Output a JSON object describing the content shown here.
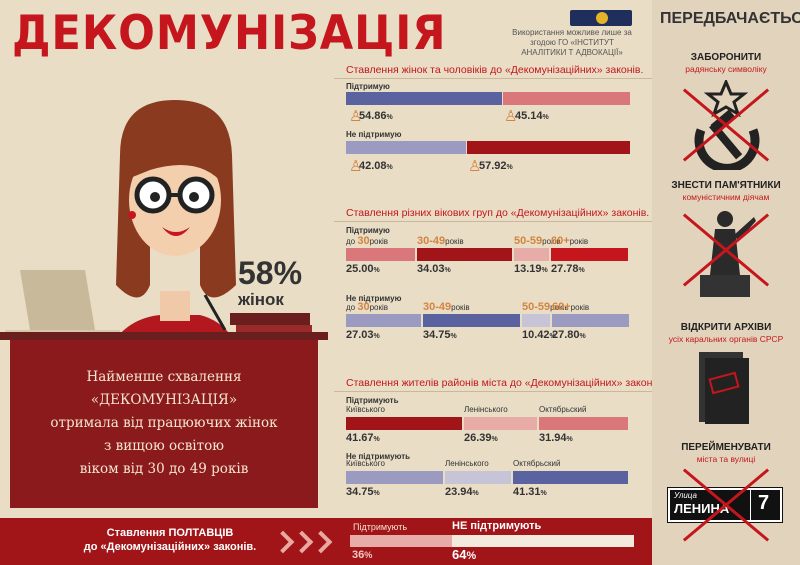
{
  "title": "ДЕКОМУНІЗАЦІЯ",
  "note": "Використання можливе лише за згодою ГО «ІНСТИТУТ АНАЛІТИКИ Т АДВОКАЦІЇ»",
  "colors": {
    "red": "#c4161c",
    "dark_red": "#a11418",
    "light_red": "#d9777a",
    "blue": "#5b62a0",
    "light_blue": "#9b9ac0",
    "pink": "#e8aca8"
  },
  "gender": {
    "title": "Ставлення жінок та чоловіків до «Декомунізаційних» законів.",
    "support_label": "Підтримую",
    "oppose_label": "Не підтримую",
    "support": {
      "male": 54.86,
      "female": 45.14,
      "male_text": "54.86",
      "female_text": "45.14"
    },
    "oppose": {
      "male": 42.08,
      "female": 57.92,
      "male_text": "42.08",
      "female_text": "57.92"
    },
    "pct": "%"
  },
  "age": {
    "title": "Ставлення різних вікових груп до «Декомунізаційних» законів.",
    "support_label": "Підтримую",
    "oppose_label": "Не підтримую",
    "groups": [
      {
        "pre": "до",
        "num": "30",
        "suf": "років"
      },
      {
        "pre": "",
        "num": "30-49",
        "suf": "років"
      },
      {
        "pre": "",
        "num": "50-59",
        "suf": "років"
      },
      {
        "pre": "",
        "num": "60+",
        "suf": "років"
      }
    ],
    "support": [
      25.0,
      34.03,
      13.19,
      27.78
    ],
    "support_text": [
      "25.00",
      "34.03",
      "13.19",
      "27.78"
    ],
    "oppose": [
      27.03,
      34.75,
      10.42,
      27.8
    ],
    "oppose_text": [
      "27.03",
      "34.75",
      "10.42",
      "27.80"
    ]
  },
  "district": {
    "title": "Ставлення жителів районів міста до «Декомунізаційних» законів.",
    "support_label": "Підтримують",
    "oppose_label": "Не підтримують",
    "names": [
      "Київського",
      "Ленінського",
      "Октябрьский"
    ],
    "support": [
      41.67,
      26.39,
      31.94
    ],
    "support_text": [
      "41.67",
      "26.39",
      "31.94"
    ],
    "oppose": [
      34.75,
      23.94,
      41.31
    ],
    "oppose_text": [
      "34.75",
      "23.94",
      "41.31"
    ]
  },
  "women": {
    "percent": "58%",
    "label": "жінок"
  },
  "desk_text": [
    "Найменше схвалення",
    "«ДЕКОМУНІЗАЦІЯ»",
    "отримала від працюючих жінок",
    "з вищою освітою",
    "віком від 30 до 49 років"
  ],
  "poltava": {
    "line1a": "Ставлення ",
    "line1b": "ПОЛТАВЦІВ",
    "line2": "до «Декомунізаційних» законів.",
    "support_label": "Підтримують",
    "oppose_label": "НЕ підтримують",
    "support_value": 36,
    "oppose_value": 64,
    "support_text": "36",
    "oppose_text": "64",
    "pct": "%"
  },
  "right": {
    "title": "ПЕРЕДБАЧАЄТЬСЯ:",
    "items": [
      {
        "head": "ЗАБОРОНИТИ",
        "sub": "радянську символіку",
        "icon": "hammer-sickle-star-icon"
      },
      {
        "head": "ЗНЕСТИ ПАМ'ЯТНИКИ",
        "sub": "комуністичним діячам",
        "icon": "lenin-monument-icon"
      },
      {
        "head": "ВІДКРИТИ АРХІВИ",
        "sub": "усіх каральних органів СРСР",
        "icon": "archive-folder-icon"
      },
      {
        "head": "ПЕРЕЙМЕНУВАТИ",
        "sub": "міста та вулиці",
        "icon": "street-sign-icon"
      }
    ],
    "sign_small": "Улица",
    "sign_big": "ЛЕНИНА",
    "sign_num": "7"
  }
}
